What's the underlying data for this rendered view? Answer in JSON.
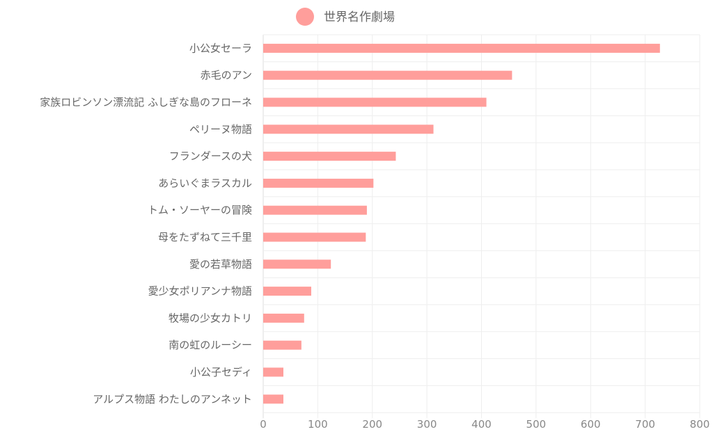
{
  "chart_data": {
    "type": "bar",
    "orientation": "horizontal",
    "title": "",
    "xlabel": "",
    "ylabel": "",
    "xlim": [
      0,
      800
    ],
    "x_ticks": [
      0,
      100,
      200,
      300,
      400,
      500,
      600,
      700,
      800
    ],
    "grid": true,
    "legend_position": "top-center",
    "color": "#ff9e9b",
    "categories": [
      "小公女セーラ",
      "赤毛のアン",
      "家族ロビンソン漂流記 ふしぎな島のフローネ",
      "ペリーヌ物語",
      "フランダースの犬",
      "あらいぐまラスカル",
      "トム・ソーヤーの冒険",
      "母をたずねて三千里",
      "愛の若草物語",
      "愛少女ポリアンナ物語",
      "牧場の少女カトリ",
      "南の虹のルーシー",
      "小公子セディ",
      "アルプス物語 わたしのアンネット"
    ],
    "series": [
      {
        "name": "世界名作劇場",
        "values": [
          727,
          456,
          409,
          312,
          243,
          202,
          190,
          188,
          124,
          88,
          75,
          70,
          37,
          37
        ]
      }
    ]
  }
}
